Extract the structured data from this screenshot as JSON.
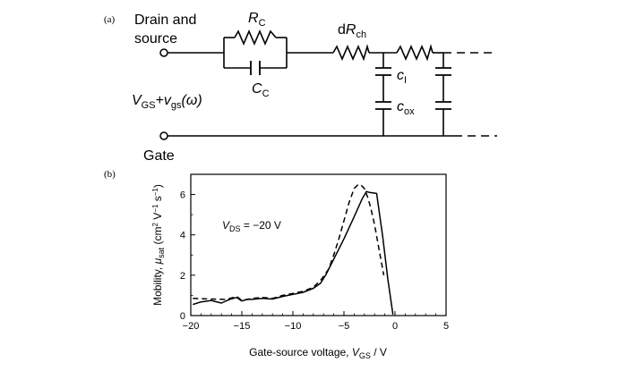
{
  "panel_a": {
    "label": "(a)",
    "terminal_top_line1": "Drain and",
    "terminal_top_line2": "source",
    "contact_resistance": {
      "main": "R",
      "sub": "C"
    },
    "contact_capacitance": {
      "main": "C",
      "sub": "C"
    },
    "channel_resistance": {
      "prefix": "d",
      "main": "R",
      "sub": "ch"
    },
    "interface_capacitance": {
      "main": "c",
      "sub": "I"
    },
    "oxide_capacitance": {
      "main": "c",
      "sub": "ox"
    },
    "bias_label": {
      "v1": "V",
      "s1": "GS",
      "plus": "+",
      "v2": "v",
      "s2": "gs",
      "arg": "(ω)"
    },
    "terminal_bottom": "Gate"
  },
  "panel_b": {
    "label": "(b)",
    "annotation": {
      "v": "V",
      "sub": "DS",
      "rest": " = −20 V"
    },
    "chart_data": {
      "type": "line",
      "xlabel": "Gate-source voltage, V_GS / V",
      "ylabel": "Mobility, μ_sat (cm² V⁻¹ s⁻¹)",
      "xlim": [
        -20,
        5
      ],
      "ylim": [
        0,
        7
      ],
      "x_ticks": [
        -20,
        -15,
        -10,
        -5,
        0,
        5
      ],
      "y_ticks": [
        0,
        2,
        4,
        6
      ],
      "x_tick_labels": [
        "−20",
        "−15",
        "−10",
        "−5",
        "0",
        "5"
      ],
      "y_tick_labels": [
        "0",
        "2",
        "4",
        "6"
      ],
      "grid": false,
      "series": [
        {
          "style": "solid",
          "x": [
            -19.8,
            -19,
            -18,
            -17,
            -16.2,
            -15.5,
            -15,
            -14.5,
            -14,
            -13,
            -12,
            -11,
            -10,
            -9,
            -8,
            -7.3,
            -6.8,
            -6.3,
            -5.8,
            -5,
            -4,
            -3.2,
            -2.8,
            -2.5,
            -1.8,
            -1.2,
            -0.7,
            -0.2
          ],
          "y": [
            0.55,
            0.68,
            0.75,
            0.62,
            0.8,
            0.9,
            0.72,
            0.8,
            0.8,
            0.85,
            0.82,
            0.95,
            1.05,
            1.15,
            1.35,
            1.6,
            2.0,
            2.5,
            3.0,
            3.8,
            4.9,
            5.8,
            6.15,
            6.1,
            6.05,
            3.9,
            1.8,
            0.05
          ]
        },
        {
          "style": "dashed",
          "x": [
            -19.8,
            -18,
            -16.5,
            -15.5,
            -15,
            -14,
            -13,
            -12,
            -11,
            -10,
            -9,
            -8,
            -7.2,
            -6.5,
            -6,
            -5.5,
            -5,
            -4.5,
            -4,
            -3.6,
            -3.3,
            -3,
            -2.7,
            -2.4,
            -2,
            -1.5,
            -1.1
          ],
          "y": [
            0.85,
            0.82,
            0.8,
            0.95,
            0.75,
            0.85,
            0.9,
            0.85,
            1.0,
            1.1,
            1.2,
            1.4,
            1.8,
            2.3,
            3.0,
            3.8,
            4.7,
            5.6,
            6.3,
            6.5,
            6.45,
            6.3,
            5.9,
            5.4,
            4.5,
            3.1,
            2.0
          ]
        }
      ]
    }
  }
}
